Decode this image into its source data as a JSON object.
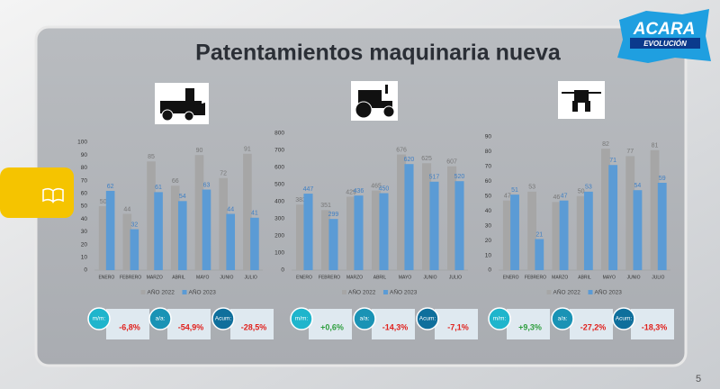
{
  "header": {
    "title": "Patentamientos maquinaria nueva"
  },
  "logo": {
    "name": "ACARA",
    "tagline": "EVOLUCIÓN"
  },
  "page_number": "5",
  "chart_data": [
    {
      "type": "bar",
      "categories": [
        "ENERO",
        "FEBRERO",
        "MARZO",
        "ABRIL",
        "MAYO",
        "JUNIO",
        "JULIO"
      ],
      "series": [
        {
          "name": "AÑO 2022",
          "color": "#a6a6a6",
          "values": [
            50,
            44,
            85,
            66,
            90,
            72,
            91
          ]
        },
        {
          "name": "AÑO 2023",
          "color": "#5b9bd5",
          "values": [
            62,
            32,
            61,
            54,
            63,
            44,
            41
          ]
        }
      ],
      "ylim": [
        0,
        100
      ],
      "yticks": [
        0,
        10,
        20,
        30,
        40,
        50,
        60,
        70,
        80,
        90,
        100
      ],
      "grid": false,
      "kpis": [
        {
          "label": "m/m:",
          "value": "-6,8%",
          "value_color": "#e0201c"
        },
        {
          "label": "a/a:",
          "value": "-54,9%",
          "value_color": "#e0201c"
        },
        {
          "label": "Acum:",
          "value": "-28,5%",
          "value_color": "#e0201c"
        }
      ]
    },
    {
      "type": "bar",
      "categories": [
        "ENERO",
        "FEBRERO",
        "MARZO",
        "ABRIL",
        "MAYO",
        "JUNIO",
        "JULIO"
      ],
      "series": [
        {
          "name": "AÑO 2022",
          "color": "#a6a6a6",
          "values": [
            383,
            351,
            429,
            465,
            676,
            625,
            607
          ]
        },
        {
          "name": "AÑO 2023",
          "color": "#5b9bd5",
          "values": [
            447,
            299,
            436,
            450,
            620,
            517,
            520
          ]
        }
      ],
      "ylim": [
        0,
        800
      ],
      "yticks": [
        0,
        100,
        200,
        300,
        400,
        500,
        600,
        700,
        800
      ],
      "grid": false,
      "kpis": [
        {
          "label": "m/m:",
          "value": "+0,6%",
          "value_color": "#2e9e3e"
        },
        {
          "label": "a/a:",
          "value": "-14,3%",
          "value_color": "#e0201c"
        },
        {
          "label": "Acum:",
          "value": "-7,1%",
          "value_color": "#e0201c"
        }
      ]
    },
    {
      "type": "bar",
      "categories": [
        "ENERO",
        "FEBRERO",
        "MARZO",
        "ABRIL",
        "MAYO",
        "JUNIO",
        "JULIO"
      ],
      "series": [
        {
          "name": "AÑO 2022",
          "color": "#a6a6a6",
          "values": [
            47,
            53,
            46,
            50,
            82,
            77,
            81
          ]
        },
        {
          "name": "AÑO 2023",
          "color": "#5b9bd5",
          "values": [
            51,
            21,
            47,
            53,
            71,
            54,
            59
          ]
        }
      ],
      "ylim": [
        0,
        90
      ],
      "yticks": [
        0,
        10,
        20,
        30,
        40,
        50,
        60,
        70,
        80,
        90
      ],
      "grid": false,
      "kpis": [
        {
          "label": "m/m:",
          "value": "+9,3%",
          "value_color": "#2e9e3e"
        },
        {
          "label": "a/a:",
          "value": "-27,2%",
          "value_color": "#e0201c"
        },
        {
          "label": "Acum:",
          "value": "-18,3%",
          "value_color": "#e0201c"
        }
      ]
    }
  ]
}
